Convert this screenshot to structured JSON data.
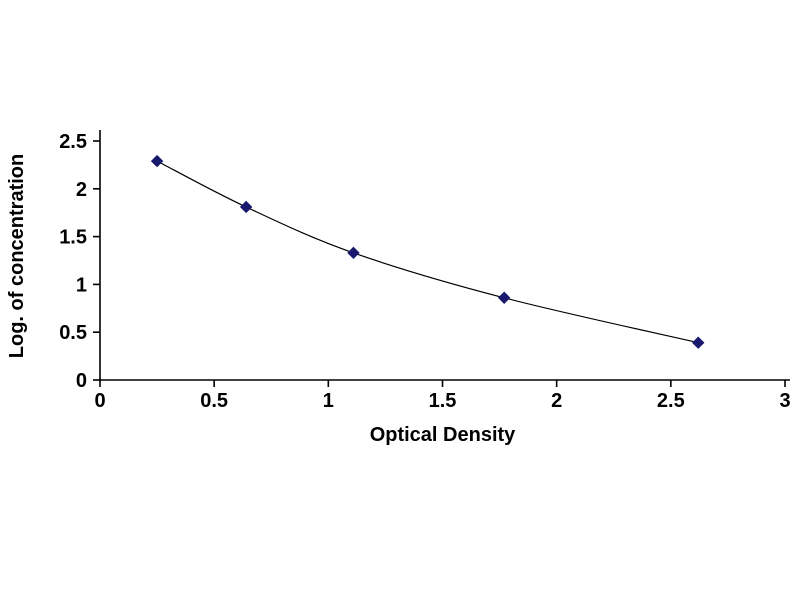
{
  "chart_data": {
    "type": "line",
    "xlabel": "Optical Density",
    "ylabel": "Log. of concentration",
    "x": [
      0.25,
      0.64,
      1.11,
      1.77,
      2.62
    ],
    "y": [
      2.29,
      1.81,
      1.33,
      0.86,
      0.39
    ],
    "xlim": [
      0,
      3
    ],
    "ylim": [
      0,
      2.5
    ],
    "x_ticks": [
      "0",
      "0.5",
      "1",
      "1.5",
      "2",
      "2.5",
      "3"
    ],
    "y_ticks": [
      "0",
      "0.5",
      "1",
      "1.5",
      "2",
      "2.5"
    ],
    "grid": false,
    "legend": "none",
    "marker": "diamond",
    "colors": {
      "marker": "#191970",
      "line": "#000000",
      "axis": "#000000",
      "text": "#000000",
      "background": "#ffffff"
    }
  }
}
